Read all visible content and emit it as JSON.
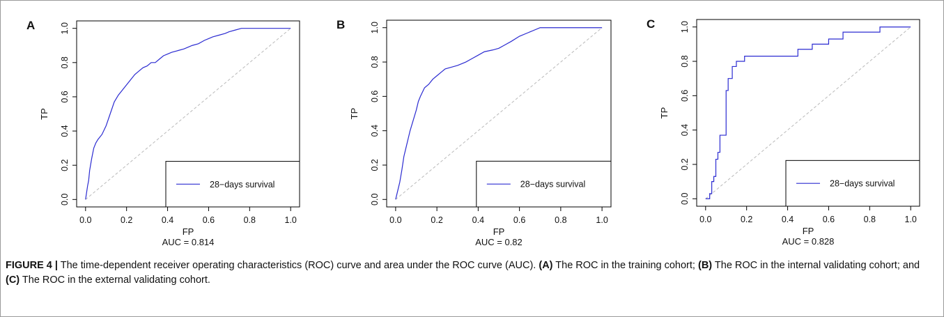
{
  "colors": {
    "curve": "#2b2bd1",
    "diagonal": "#b9b9b9",
    "axis": "#000000",
    "text": "#111111"
  },
  "chart_data": [
    {
      "type": "line",
      "panel": "A",
      "xlabel": "FP",
      "ylabel": "TP",
      "auc_label": "AUC =  0.814",
      "xlim": [
        0,
        1
      ],
      "ylim": [
        0,
        1
      ],
      "xticks": [
        "0.0",
        "0.2",
        "0.4",
        "0.6",
        "0.8",
        "1.0"
      ],
      "yticks": [
        "0.0",
        "0.2",
        "0.4",
        "0.6",
        "0.8",
        "1.0"
      ],
      "legend": {
        "position": "bottom-right",
        "label": "28−days survival"
      },
      "reference_line": [
        [
          0,
          0
        ],
        [
          1,
          1
        ]
      ],
      "series": [
        {
          "name": "28−days survival",
          "x": [
            0,
            0.01,
            0.015,
            0.02,
            0.03,
            0.04,
            0.05,
            0.06,
            0.08,
            0.1,
            0.12,
            0.14,
            0.16,
            0.18,
            0.2,
            0.22,
            0.24,
            0.26,
            0.28,
            0.3,
            0.32,
            0.34,
            0.36,
            0.38,
            0.4,
            0.42,
            0.45,
            0.48,
            0.5,
            0.52,
            0.55,
            0.58,
            0.6,
            0.62,
            0.65,
            0.68,
            0.7,
            0.73,
            0.76,
            0.8,
            1
          ],
          "y": [
            0,
            0.08,
            0.11,
            0.17,
            0.24,
            0.3,
            0.33,
            0.35,
            0.38,
            0.43,
            0.5,
            0.57,
            0.61,
            0.64,
            0.67,
            0.7,
            0.73,
            0.75,
            0.77,
            0.78,
            0.8,
            0.8,
            0.82,
            0.84,
            0.85,
            0.86,
            0.87,
            0.88,
            0.89,
            0.9,
            0.91,
            0.93,
            0.94,
            0.95,
            0.96,
            0.97,
            0.98,
            0.99,
            1,
            1,
            1
          ]
        }
      ]
    },
    {
      "type": "line",
      "panel": "B",
      "xlabel": "FP",
      "ylabel": "TP",
      "auc_label": "AUC =  0.82",
      "xlim": [
        0,
        1
      ],
      "ylim": [
        0,
        1
      ],
      "xticks": [
        "0.0",
        "0.2",
        "0.4",
        "0.6",
        "0.8",
        "1.0"
      ],
      "yticks": [
        "0.0",
        "0.2",
        "0.4",
        "0.6",
        "0.8",
        "1.0"
      ],
      "legend": {
        "position": "bottom-right",
        "label": "28−days survival"
      },
      "reference_line": [
        [
          0,
          0
        ],
        [
          1,
          1
        ]
      ],
      "series": [
        {
          "name": "28−days survival",
          "x": [
            0,
            0.01,
            0.02,
            0.03,
            0.04,
            0.05,
            0.06,
            0.07,
            0.08,
            0.09,
            0.1,
            0.11,
            0.12,
            0.14,
            0.16,
            0.18,
            0.2,
            0.22,
            0.24,
            0.27,
            0.3,
            0.34,
            0.37,
            0.4,
            0.43,
            0.47,
            0.5,
            0.53,
            0.56,
            0.6,
            0.64,
            0.7,
            0.75,
            1
          ],
          "y": [
            0,
            0.05,
            0.1,
            0.17,
            0.25,
            0.3,
            0.35,
            0.4,
            0.44,
            0.48,
            0.52,
            0.57,
            0.6,
            0.65,
            0.67,
            0.7,
            0.72,
            0.74,
            0.76,
            0.77,
            0.78,
            0.8,
            0.82,
            0.84,
            0.86,
            0.87,
            0.88,
            0.9,
            0.92,
            0.95,
            0.97,
            1,
            1,
            1
          ]
        }
      ]
    },
    {
      "type": "line",
      "panel": "C",
      "xlabel": "FP",
      "ylabel": "TP",
      "auc_label": "AUC =  0.828",
      "xlim": [
        0,
        1
      ],
      "ylim": [
        0,
        1
      ],
      "xticks": [
        "0.0",
        "0.2",
        "0.4",
        "0.6",
        "0.8",
        "1.0"
      ],
      "yticks": [
        "0.0",
        "0.2",
        "0.4",
        "0.6",
        "0.8",
        "1.0"
      ],
      "legend": {
        "position": "bottom-right",
        "label": "28−days survival"
      },
      "reference_line": [
        [
          0,
          0
        ],
        [
          1,
          1
        ]
      ],
      "series": [
        {
          "name": "28−days survival",
          "step": true,
          "x": [
            0,
            0.02,
            0.03,
            0.04,
            0.05,
            0.06,
            0.07,
            0.1,
            0.11,
            0.13,
            0.14,
            0.15,
            0.17,
            0.19,
            0.21,
            0.23,
            0.38,
            0.45,
            0.48,
            0.52,
            0.6,
            0.67,
            0.8,
            0.85,
            1
          ],
          "y": [
            0,
            0.03,
            0.1,
            0.13,
            0.23,
            0.27,
            0.37,
            0.63,
            0.7,
            0.77,
            0.77,
            0.8,
            0.8,
            0.83,
            0.83,
            0.83,
            0.83,
            0.87,
            0.87,
            0.9,
            0.93,
            0.97,
            0.97,
            1,
            1
          ]
        }
      ]
    }
  ],
  "caption": {
    "figure_label": "FIGURE 4 |",
    "segments": [
      {
        "text": " The time-dependent receiver operating characteristics (ROC) curve and area under the ROC curve (AUC). ",
        "bold": false
      },
      {
        "text": "(A)",
        "bold": true
      },
      {
        "text": " The ROC in the training cohort; ",
        "bold": false
      },
      {
        "text": "(B)",
        "bold": true
      },
      {
        "text": " The ROC in the internal validating cohort; and ",
        "bold": false
      },
      {
        "text": "(C)",
        "bold": true
      },
      {
        "text": " The ROC in the external validating cohort.",
        "bold": false
      }
    ]
  }
}
